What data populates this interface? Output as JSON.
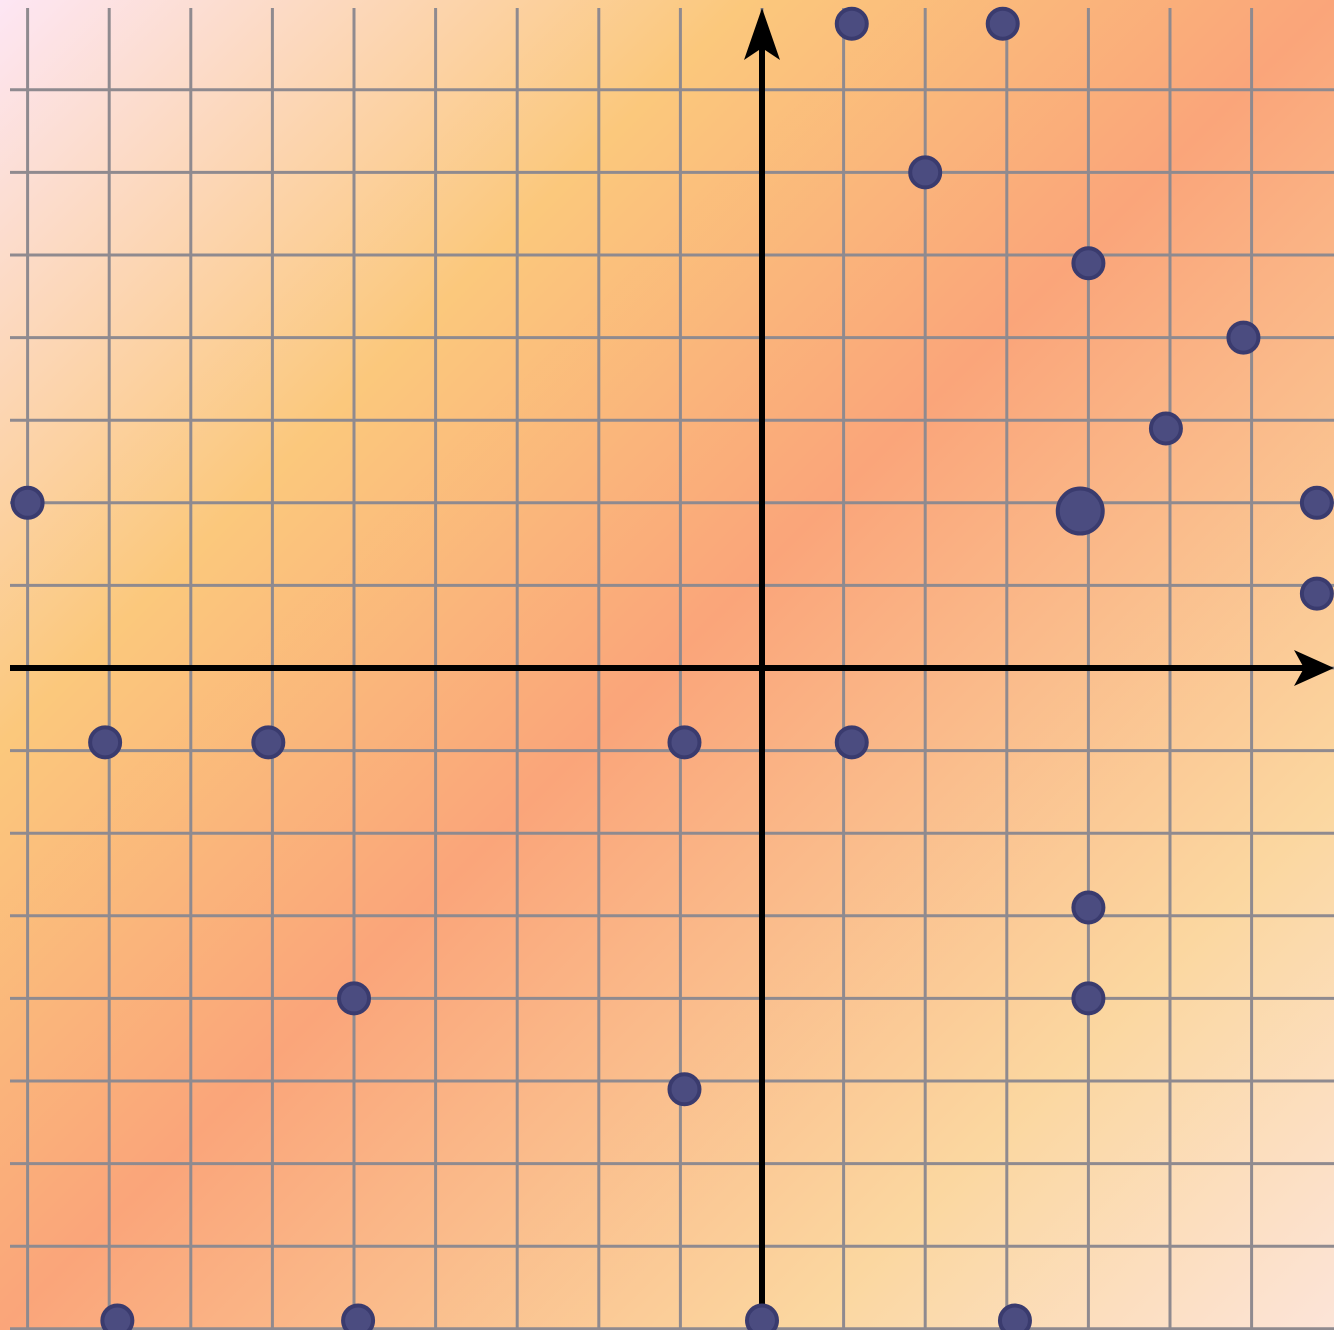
{
  "colors": {
    "background_gradient": [
      "#fde6f4",
      "#fbc87c",
      "#faa57a",
      "#fbd7a0",
      "#fce4d8"
    ],
    "grid": "#8f8a8f",
    "axis": "#000000",
    "point_fill": "#4b4c80",
    "point_stroke": "#3a3b6e"
  },
  "chart_data": {
    "type": "scatter",
    "title": "",
    "xlabel": "",
    "ylabel": "",
    "grid": true,
    "xlim": [
      -9.3,
      7.0
    ],
    "ylim": [
      -8.0,
      8.0
    ],
    "x_gridlines": [
      -9,
      -8,
      -7,
      -6,
      -5,
      -4,
      -3,
      -2,
      -1,
      0,
      1,
      2,
      3,
      4,
      5,
      6
    ],
    "y_gridlines": [
      -8,
      -7,
      -6,
      -5,
      -4,
      -3,
      -2,
      -1,
      0,
      1,
      2,
      3,
      4,
      5,
      6,
      7
    ],
    "points": [
      {
        "x": 1.1,
        "y": 7.8,
        "r": 1
      },
      {
        "x": 2.95,
        "y": 7.8,
        "r": 1
      },
      {
        "x": 2.0,
        "y": 6.0,
        "r": 1
      },
      {
        "x": 4.0,
        "y": 4.9,
        "r": 1
      },
      {
        "x": 5.9,
        "y": 4.0,
        "r": 1
      },
      {
        "x": 4.95,
        "y": 2.9,
        "r": 1
      },
      {
        "x": -9.0,
        "y": 2.0,
        "r": 1
      },
      {
        "x": 3.9,
        "y": 1.9,
        "r": 1.5
      },
      {
        "x": 6.8,
        "y": 2.0,
        "r": 1
      },
      {
        "x": 6.8,
        "y": 0.9,
        "r": 1
      },
      {
        "x": -8.05,
        "y": -0.9,
        "r": 1
      },
      {
        "x": -6.05,
        "y": -0.9,
        "r": 1
      },
      {
        "x": -0.95,
        "y": -0.9,
        "r": 1
      },
      {
        "x": 1.1,
        "y": -0.9,
        "r": 1
      },
      {
        "x": 4.0,
        "y": -2.9,
        "r": 1
      },
      {
        "x": -5.0,
        "y": -4.0,
        "r": 1
      },
      {
        "x": 4.0,
        "y": -4.0,
        "r": 1
      },
      {
        "x": -0.95,
        "y": -5.1,
        "r": 1
      },
      {
        "x": -7.9,
        "y": -7.9,
        "r": 1
      },
      {
        "x": -4.95,
        "y": -7.9,
        "r": 1
      },
      {
        "x": 0.0,
        "y": -7.9,
        "r": 1
      },
      {
        "x": 3.1,
        "y": -7.9,
        "r": 1
      }
    ]
  }
}
